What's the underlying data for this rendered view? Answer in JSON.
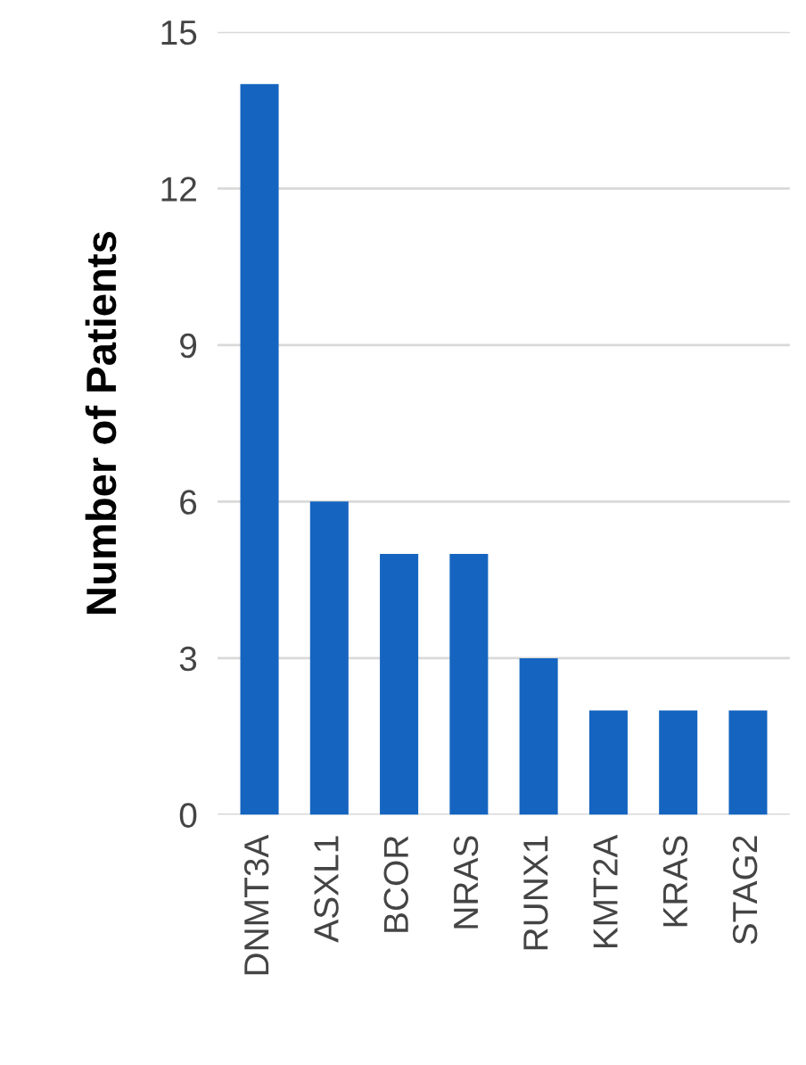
{
  "chart_data": {
    "type": "bar",
    "ylabel": "Number of Patients",
    "categories": [
      "DNMT3A",
      "ASXL1",
      "BCOR",
      "NRAS",
      "RUNX1",
      "KMT2A",
      "KRAS",
      "STAG2"
    ],
    "values": [
      14,
      6,
      5,
      5,
      3,
      2,
      2,
      2
    ],
    "color": "#1565c0",
    "ylim": [
      0,
      15
    ],
    "yticks": [
      0,
      3,
      6,
      9,
      12,
      15
    ],
    "grid": "y"
  }
}
